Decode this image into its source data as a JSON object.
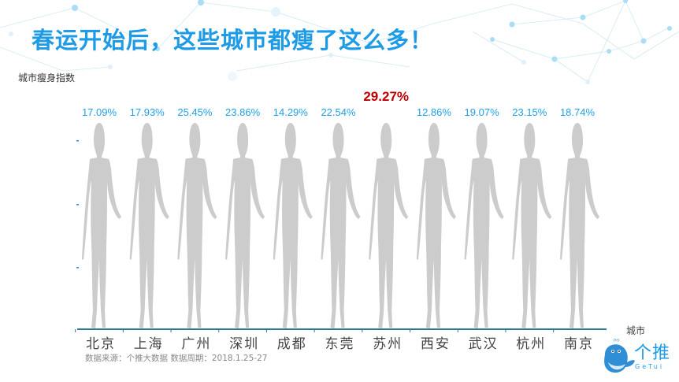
{
  "title": "春运开始后，这些城市都瘦了这么多！",
  "ylabel": "城市瘦身指数",
  "xlabel": "城市",
  "source": "数据来源：个推大数据 数据周期：2018.1.25-27",
  "logo": {
    "name": "个推",
    "sub": "GeTui"
  },
  "colors": {
    "fill": "#3b86c8",
    "empty": "#cccccc",
    "title": "#1e9be6",
    "value": "#1ea0e6",
    "highlight": "#c00000",
    "axis": "#2a7a8c"
  },
  "chart_data": {
    "type": "bar",
    "subtype": "pictorial-fill",
    "title": "春运开始后，这些城市都瘦了这么多！",
    "ylabel": "城市瘦身指数",
    "xlabel": "城市",
    "categories": [
      "北京",
      "上海",
      "广州",
      "深圳",
      "成都",
      "东莞",
      "苏州",
      "西安",
      "武汉",
      "杭州",
      "南京"
    ],
    "values": [
      17.09,
      17.93,
      25.45,
      23.86,
      14.29,
      22.54,
      29.27,
      12.86,
      19.07,
      23.15,
      18.74
    ],
    "labels": [
      "17.09%",
      "17.93%",
      "25.45%",
      "23.86%",
      "14.29%",
      "22.54%",
      "29.27%",
      "12.86%",
      "19.07%",
      "23.15%",
      "18.74%"
    ],
    "highlight_index": 6,
    "unit": "%",
    "grid": false,
    "legend": "none"
  }
}
